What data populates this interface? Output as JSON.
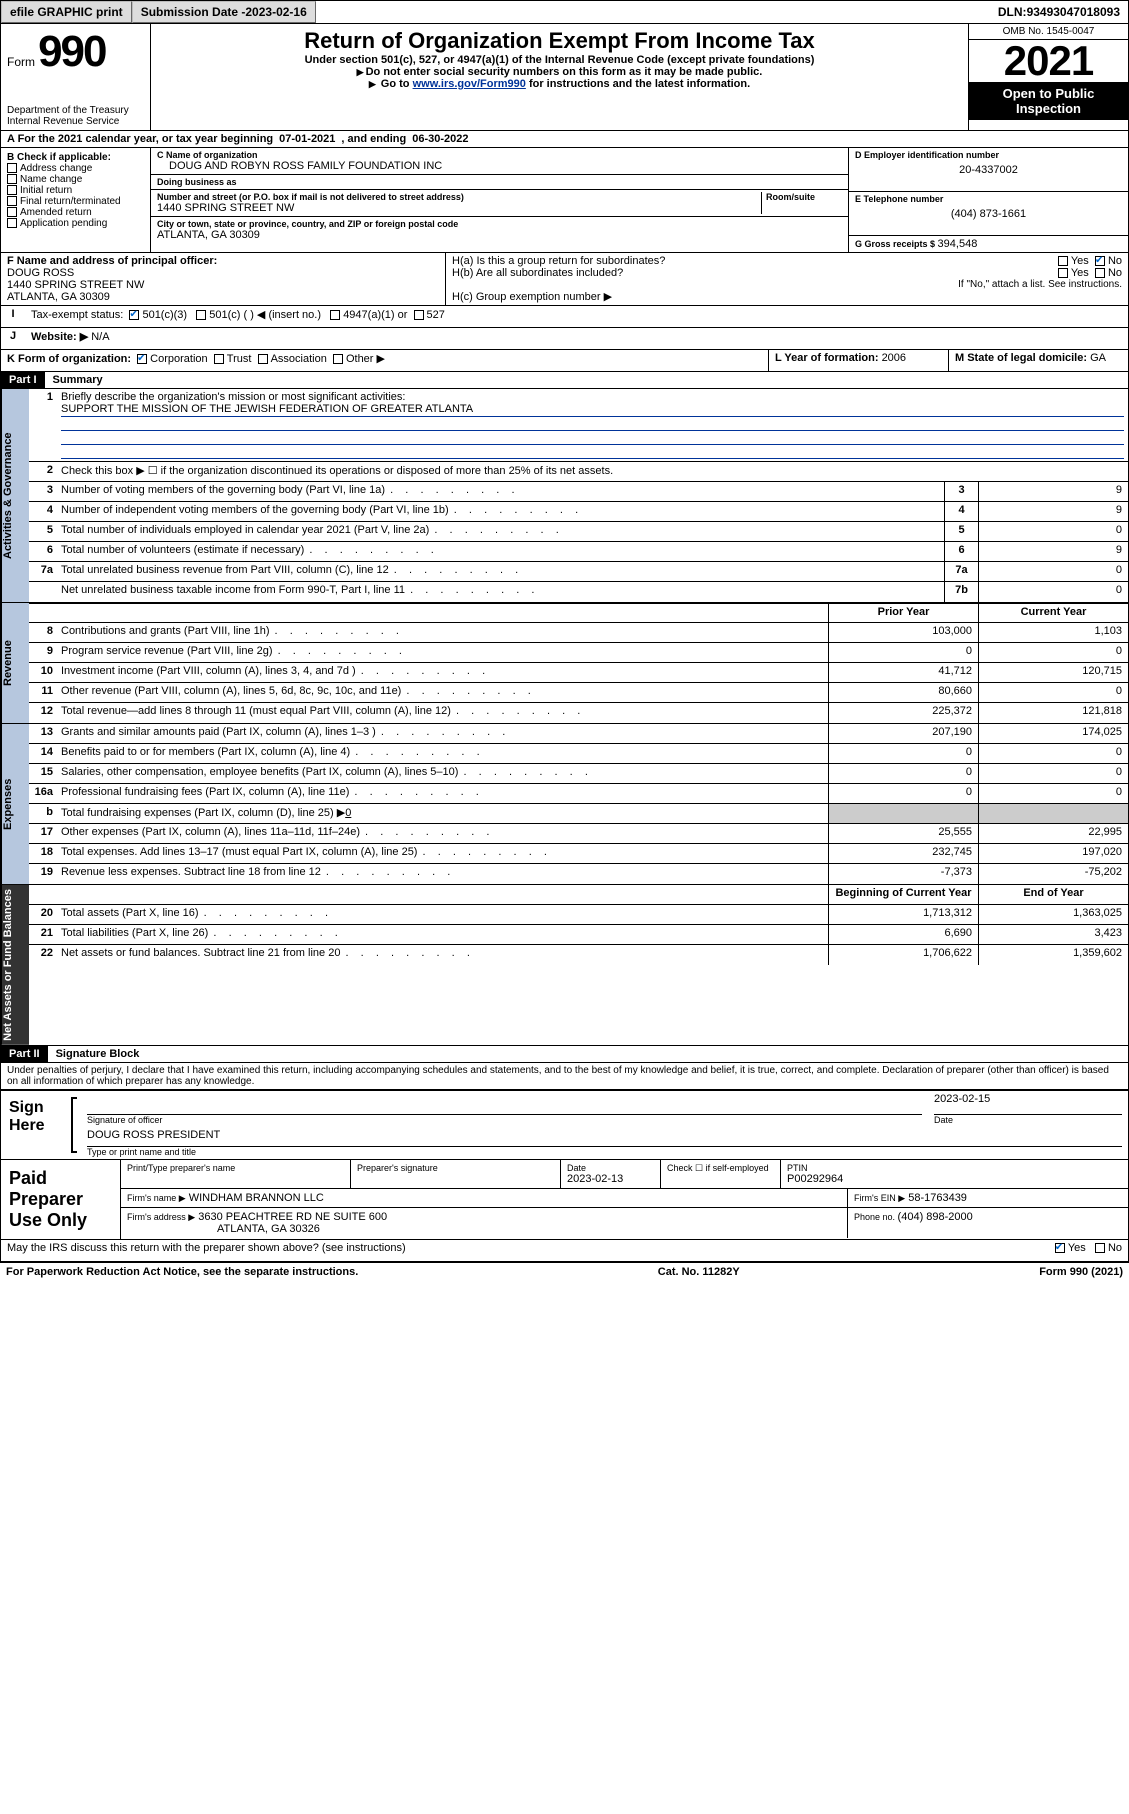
{
  "topbar": {
    "efile": "efile GRAPHIC print",
    "subdate_label": "Submission Date - ",
    "subdate": "2023-02-16",
    "dln_label": "DLN: ",
    "dln": "93493047018093"
  },
  "header": {
    "form_prefix": "Form",
    "form_number": "990",
    "title": "Return of Organization Exempt From Income Tax",
    "subtitle": "Under section 501(c), 527, or 4947(a)(1) of the Internal Revenue Code (except private foundations)",
    "note1": "Do not enter social security numbers on this form as it may be made public.",
    "note2_pre": "Go to ",
    "note2_link": "www.irs.gov/Form990",
    "note2_post": " for instructions and the latest information.",
    "dept": "Department of the Treasury",
    "irs": "Internal Revenue Service",
    "omb": "OMB No. 1545-0047",
    "year": "2021",
    "badge_l1": "Open to Public",
    "badge_l2": "Inspection"
  },
  "A": {
    "label": "A For the 2021 calendar year, or tax year beginning ",
    "begin": "07-01-2021",
    "mid": " , and ending ",
    "end": "06-30-2022"
  },
  "B": {
    "header": "B Check if applicable:",
    "items": [
      "Address change",
      "Name change",
      "Initial return",
      "Final return/terminated",
      "Amended return",
      "Application pending"
    ]
  },
  "C": {
    "name_label": "C Name of organization",
    "name": "DOUG AND ROBYN ROSS FAMILY FOUNDATION INC",
    "dba_label": "Doing business as",
    "street_label": "Number and street (or P.O. box if mail is not delivered to street address)",
    "room_label": "Room/suite",
    "street": "1440 SPRING STREET NW",
    "city_label": "City or town, state or province, country, and ZIP or foreign postal code",
    "city": "ATLANTA, GA  30309"
  },
  "D": {
    "label": "D Employer identification number",
    "value": "20-4337002"
  },
  "E": {
    "label": "E Telephone number",
    "value": "(404) 873-1661"
  },
  "G": {
    "label": "G Gross receipts $ ",
    "value": "394,548"
  },
  "F": {
    "label": "F Name and address of principal officer:",
    "name": "DOUG ROSS",
    "street": "1440 SPRING STREET NW",
    "city": "ATLANTA, GA  30309"
  },
  "H": {
    "a": "H(a)  Is this a group return for subordinates?",
    "b": "H(b)  Are all subordinates included?",
    "note": "If \"No,\" attach a list. See instructions.",
    "c": "H(c)  Group exemption number ▶",
    "yes": "Yes",
    "no": "No"
  },
  "I": {
    "label": "Tax-exempt status:",
    "c3": "501(c)(3)",
    "c_open": "501(c) (  ) ◀ (insert no.)",
    "c4947": "4947(a)(1) or",
    "c527": "527"
  },
  "J": {
    "label": "Website: ▶",
    "value": "N/A"
  },
  "K": {
    "label": "K Form of organization:",
    "opts": [
      "Corporation",
      "Trust",
      "Association",
      "Other ▶"
    ],
    "checked": 0
  },
  "L": {
    "label": "L Year of formation: ",
    "value": "2006"
  },
  "M": {
    "label": "M State of legal domicile: ",
    "value": "GA"
  },
  "part1": {
    "tag": "Part I",
    "title": "Summary"
  },
  "summary": {
    "line1": "Briefly describe the organization's mission or most significant activities:",
    "mission": "SUPPORT THE MISSION OF THE JEWISH FEDERATION OF GREATER ATLANTA",
    "line2": "Check this box ▶ ☐  if the organization discontinued its operations or disposed of more than 25% of its net assets.",
    "rows_single": [
      {
        "n": "3",
        "d": "Number of voting members of the governing body (Part VI, line 1a)",
        "c": "3",
        "v": "9"
      },
      {
        "n": "4",
        "d": "Number of independent voting members of the governing body (Part VI, line 1b)",
        "c": "4",
        "v": "9"
      },
      {
        "n": "5",
        "d": "Total number of individuals employed in calendar year 2021 (Part V, line 2a)",
        "c": "5",
        "v": "0"
      },
      {
        "n": "6",
        "d": "Total number of volunteers (estimate if necessary)",
        "c": "6",
        "v": "9"
      },
      {
        "n": "7a",
        "d": "Total unrelated business revenue from Part VIII, column (C), line 12",
        "c": "7a",
        "v": "0"
      },
      {
        "n": "",
        "d": "Net unrelated business taxable income from Form 990-T, Part I, line 11",
        "c": "7b",
        "v": "0"
      }
    ],
    "col_headers": {
      "prior": "Prior Year",
      "current": "Current Year"
    },
    "revenue": [
      {
        "n": "8",
        "d": "Contributions and grants (Part VIII, line 1h)",
        "p": "103,000",
        "c": "1,103"
      },
      {
        "n": "9",
        "d": "Program service revenue (Part VIII, line 2g)",
        "p": "0",
        "c": "0"
      },
      {
        "n": "10",
        "d": "Investment income (Part VIII, column (A), lines 3, 4, and 7d )",
        "p": "41,712",
        "c": "120,715"
      },
      {
        "n": "11",
        "d": "Other revenue (Part VIII, column (A), lines 5, 6d, 8c, 9c, 10c, and 11e)",
        "p": "80,660",
        "c": "0"
      },
      {
        "n": "12",
        "d": "Total revenue—add lines 8 through 11 (must equal Part VIII, column (A), line 12)",
        "p": "225,372",
        "c": "121,818"
      }
    ],
    "expenses": [
      {
        "n": "13",
        "d": "Grants and similar amounts paid (Part IX, column (A), lines 1–3 )",
        "p": "207,190",
        "c": "174,025"
      },
      {
        "n": "14",
        "d": "Benefits paid to or for members (Part IX, column (A), line 4)",
        "p": "0",
        "c": "0"
      },
      {
        "n": "15",
        "d": "Salaries, other compensation, employee benefits (Part IX, column (A), lines 5–10)",
        "p": "0",
        "c": "0"
      },
      {
        "n": "16a",
        "d": "Professional fundraising fees (Part IX, column (A), line 11e)",
        "p": "0",
        "c": "0"
      },
      {
        "n": "b",
        "d": "Total fundraising expenses (Part IX, column (D), line 25) ▶",
        "p": "grey",
        "c": "grey",
        "inline": "0"
      },
      {
        "n": "17",
        "d": "Other expenses (Part IX, column (A), lines 11a–11d, 11f–24e)",
        "p": "25,555",
        "c": "22,995"
      },
      {
        "n": "18",
        "d": "Total expenses. Add lines 13–17 (must equal Part IX, column (A), line 25)",
        "p": "232,745",
        "c": "197,020"
      },
      {
        "n": "19",
        "d": "Revenue less expenses. Subtract line 18 from line 12",
        "p": "-7,373",
        "c": "-75,202"
      }
    ],
    "balance_headers": {
      "begin": "Beginning of Current Year",
      "end": "End of Year"
    },
    "balances": [
      {
        "n": "20",
        "d": "Total assets (Part X, line 16)",
        "p": "1,713,312",
        "c": "1,363,025"
      },
      {
        "n": "21",
        "d": "Total liabilities (Part X, line 26)",
        "p": "6,690",
        "c": "3,423"
      },
      {
        "n": "22",
        "d": "Net assets or fund balances. Subtract line 21 from line 20",
        "p": "1,706,622",
        "c": "1,359,602"
      }
    ],
    "tabs": {
      "ag": "Activities & Governance",
      "rev": "Revenue",
      "exp": "Expenses",
      "bal": "Net Assets or Fund Balances"
    }
  },
  "part2": {
    "tag": "Part II",
    "title": "Signature Block"
  },
  "sig": {
    "jurat": "Under penalties of perjury, I declare that I have examined this return, including accompanying schedules and statements, and to the best of my knowledge and belief, it is true, correct, and complete. Declaration of preparer (other than officer) is based on all information of which preparer has any knowledge.",
    "here": "Sign Here",
    "sig_of_officer": "Signature of officer",
    "date_label": "Date",
    "date": "2023-02-15",
    "printed": "DOUG ROSS  PRESIDENT",
    "printed_label": "Type or print name and title"
  },
  "paid": {
    "left": "Paid Preparer Use Only",
    "col1": "Print/Type preparer's name",
    "col2": "Preparer's signature",
    "col3": "Date",
    "date": "2023-02-13",
    "col4": "Check ☐ if self-employed",
    "col5_label": "PTIN",
    "ptin": "P00292964",
    "firm_name_label": "Firm's name    ▶",
    "firm_name": "WINDHAM BRANNON LLC",
    "firm_ein_label": "Firm's EIN ▶",
    "firm_ein": "58-1763439",
    "firm_addr_label": "Firm's address ▶",
    "firm_addr": "3630 PEACHTREE RD NE SUITE 600",
    "firm_city": "ATLANTA, GA  30326",
    "phone_label": "Phone no. ",
    "phone": "(404) 898-2000"
  },
  "discuss": {
    "q": "May the IRS discuss this return with the preparer shown above? (see instructions)",
    "yes": "Yes",
    "no": "No"
  },
  "footer": {
    "left": "For Paperwork Reduction Act Notice, see the separate instructions.",
    "mid": "Cat. No. 11282Y",
    "right": "Form 990 (2021)"
  },
  "colors": {
    "link": "#003399",
    "tab_bg": "#b6c7de",
    "grey": "#cccccc",
    "check": "#0066cc"
  }
}
